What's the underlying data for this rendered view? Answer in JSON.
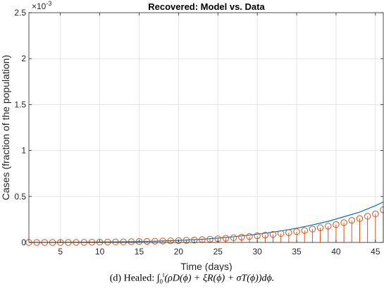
{
  "chart_data": {
    "type": "line",
    "title": "Recovered: Model vs. Data",
    "xlabel": "Time (days)",
    "ylabel": "Cases (fraction of the population)",
    "y_exponent_label": "×10",
    "y_exponent_power": "-3",
    "xlim": [
      1,
      46
    ],
    "ylim": [
      0,
      2.5
    ],
    "xticks": [
      5,
      10,
      15,
      20,
      25,
      30,
      35,
      40,
      45
    ],
    "yticks": [
      0,
      0.5,
      1,
      1.5,
      2,
      2.5
    ],
    "ytick_labels": [
      "0",
      "0.5",
      "1",
      "1.5",
      "2",
      "2.5"
    ],
    "grid": true,
    "series": [
      {
        "kind": "line",
        "color": "#0072BD",
        "x": [
          1,
          3,
          5,
          7,
          9,
          11,
          13,
          15,
          17,
          19,
          21,
          23,
          25,
          27,
          29,
          31,
          33,
          35,
          37,
          39,
          41,
          43,
          45,
          46
        ],
        "values": [
          0,
          0.0004,
          0.001,
          0.002,
          0.003,
          0.005,
          0.007,
          0.01,
          0.014,
          0.019,
          0.026,
          0.035,
          0.047,
          0.062,
          0.08,
          0.1,
          0.125,
          0.155,
          0.19,
          0.23,
          0.28,
          0.33,
          0.4,
          0.44
        ]
      },
      {
        "kind": "stem",
        "color": "#D95319",
        "x": [
          1,
          2,
          3,
          4,
          5,
          6,
          7,
          8,
          9,
          10,
          11,
          12,
          13,
          14,
          15,
          16,
          17,
          18,
          19,
          20,
          21,
          22,
          23,
          24,
          25,
          26,
          27,
          28,
          29,
          30,
          31,
          32,
          33,
          34,
          35,
          36,
          37,
          38,
          39,
          40,
          41,
          42,
          43,
          44,
          45,
          46
        ],
        "values": [
          0,
          0,
          0,
          0,
          0,
          0,
          0.0005,
          0.001,
          0.002,
          0.003,
          0.004,
          0.005,
          0.006,
          0.008,
          0.01,
          0.012,
          0.014,
          0.016,
          0.018,
          0.02,
          0.023,
          0.027,
          0.031,
          0.035,
          0.04,
          0.045,
          0.052,
          0.058,
          0.065,
          0.072,
          0.08,
          0.088,
          0.097,
          0.107,
          0.118,
          0.13,
          0.145,
          0.16,
          0.177,
          0.195,
          0.215,
          0.24,
          0.26,
          0.285,
          0.31,
          0.355
        ]
      }
    ]
  },
  "caption": {
    "prefix": "(d) Healed: ",
    "integral_sub": "0",
    "integral_sup": "t",
    "formula": "(ρD(ϕ) + ξR(ϕ) + σT(ϕ))dϕ."
  }
}
